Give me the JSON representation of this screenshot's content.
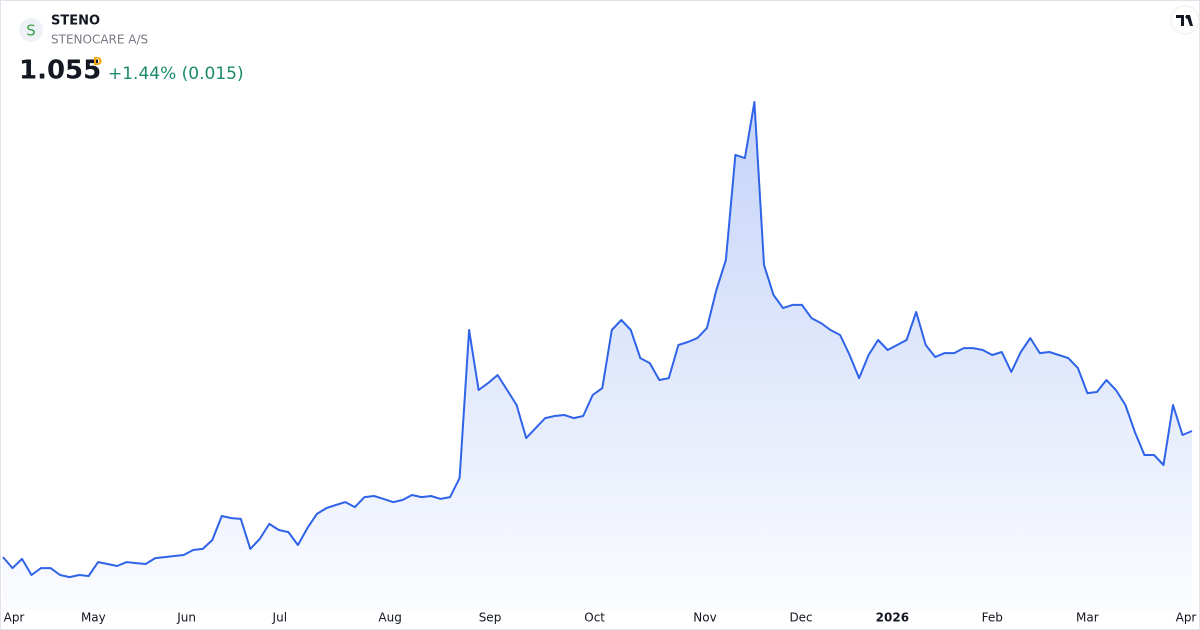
{
  "header": {
    "logo": "S",
    "symbol": "STENO",
    "name": "STENOCARE A/S",
    "price": "1.055",
    "interval": "D",
    "change": "+1.44% (0.015)"
  },
  "chart_data": {
    "type": "area",
    "values": [
      0.45,
      0.397,
      0.441,
      0.364,
      0.397,
      0.397,
      0.364,
      0.354,
      0.364,
      0.359,
      0.426,
      0.417,
      0.407,
      0.426,
      0.421,
      0.417,
      0.445,
      0.45,
      0.455,
      0.46,
      0.484,
      0.489,
      0.532,
      0.647,
      0.637,
      0.633,
      0.489,
      0.537,
      0.609,
      0.58,
      0.57,
      0.508,
      0.589,
      0.657,
      0.685,
      0.7,
      0.714,
      0.69,
      0.738,
      0.743,
      0.729,
      0.714,
      0.724,
      0.748,
      0.738,
      0.743,
      0.729,
      0.738,
      0.829,
      1.54,
      1.252,
      1.285,
      1.324,
      1.252,
      1.18,
      1.021,
      1.069,
      1.117,
      1.127,
      1.132,
      1.117,
      1.127,
      1.228,
      1.261,
      1.54,
      1.588,
      1.54,
      1.405,
      1.381,
      1.3,
      1.309,
      1.468,
      1.482,
      1.501,
      1.549,
      1.732,
      1.876,
      2.38,
      2.365,
      2.634,
      1.852,
      1.708,
      1.645,
      1.66,
      1.66,
      1.597,
      1.573,
      1.54,
      1.516,
      1.42,
      1.309,
      1.42,
      1.492,
      1.444,
      1.468,
      1.492,
      1.626,
      1.468,
      1.41,
      1.429,
      1.429,
      1.453,
      1.453,
      1.444,
      1.42,
      1.434,
      1.338,
      1.434,
      1.501,
      1.429,
      1.434,
      1.42,
      1.405,
      1.357,
      1.237,
      1.242,
      1.3,
      1.252,
      1.18,
      1.05,
      0.94,
      0.94,
      0.892,
      1.18,
      1.036,
      1.055
    ],
    "color": "#2f63e8",
    "ylim": [
      0.196,
      2.634
    ],
    "xticks": [
      {
        "value": 0.8,
        "label": "Apr"
      },
      {
        "value": 9.5,
        "label": "May"
      },
      {
        "value": 19.3,
        "label": "Jun"
      },
      {
        "value": 29.1,
        "label": "Jul"
      },
      {
        "value": 40.7,
        "label": "Aug"
      },
      {
        "value": 51.2,
        "label": "Sep"
      },
      {
        "value": 62.2,
        "label": "Oct"
      },
      {
        "value": 73.8,
        "label": "Nov"
      },
      {
        "value": 83.9,
        "label": "Dec"
      },
      {
        "value": 93.5,
        "label": "2026"
      },
      {
        "value": 104,
        "label": "Feb"
      },
      {
        "value": 114,
        "label": "Mar"
      },
      {
        "value": 124.6,
        "label": "Apr"
      }
    ]
  }
}
